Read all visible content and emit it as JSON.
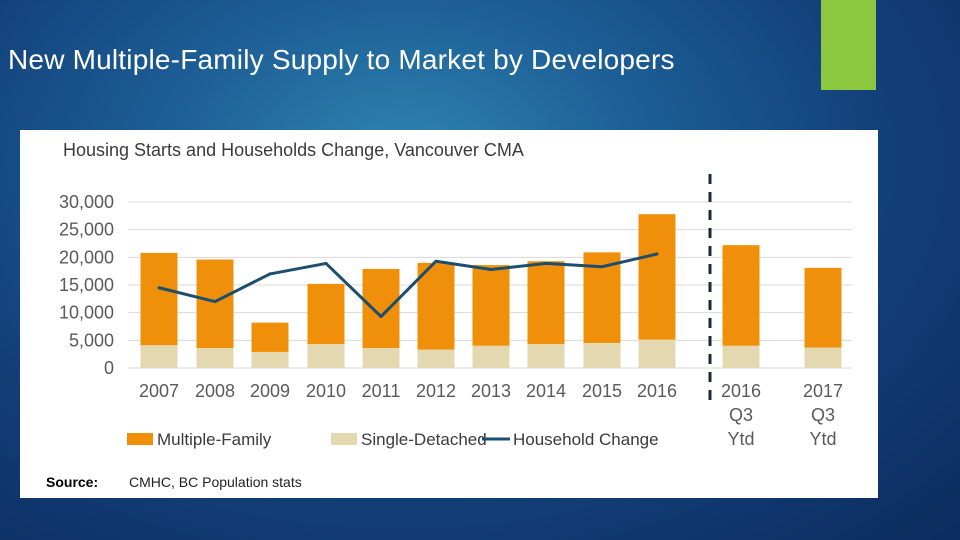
{
  "slide": {
    "title": "New Multiple-Family Supply to Market by Developers"
  },
  "colors": {
    "multiple_family": "#f0900a",
    "single_detached": "#e3d8b0",
    "household_line": "#1d4e6d",
    "accent": "#8dc63f"
  },
  "source": {
    "label": "Source:",
    "text": "CMHC, BC Population stats"
  },
  "chart_data": {
    "type": "bar",
    "title": "Housing Starts and Households Change, Vancouver CMA",
    "stacked": true,
    "categories": [
      "2007",
      "2008",
      "2009",
      "2010",
      "2011",
      "2012",
      "2013",
      "2014",
      "2015",
      "2016",
      "2016 Q3 Ytd",
      "2017 Q3 Ytd"
    ],
    "category_lines": [
      [
        "2007"
      ],
      [
        "2008"
      ],
      [
        "2009"
      ],
      [
        "2010"
      ],
      [
        "2011"
      ],
      [
        "2012"
      ],
      [
        "2013"
      ],
      [
        "2014"
      ],
      [
        "2015"
      ],
      [
        "2016"
      ],
      [
        "2016",
        "Q3",
        "Ytd"
      ],
      [
        "2017",
        "Q3",
        "Ytd"
      ]
    ],
    "series": [
      {
        "name": "Single-Detached",
        "values": [
          4100,
          3600,
          2900,
          4300,
          3600,
          3300,
          4000,
          4300,
          4500,
          5100,
          4000,
          3700
        ]
      },
      {
        "name": "Multiple-Family",
        "values": [
          16700,
          16000,
          5300,
          10900,
          14300,
          15700,
          14600,
          15000,
          16400,
          22700,
          18200,
          14400
        ]
      },
      {
        "name": "Household Change",
        "type": "line",
        "values": [
          14500,
          12000,
          17000,
          18900,
          9300,
          19300,
          17800,
          18900,
          18300,
          20600,
          null,
          null
        ]
      }
    ],
    "yticks": [
      "30,000",
      "25,000",
      "20,000",
      "15,000",
      "10,000",
      "5,000",
      "0"
    ],
    "ylim": [
      0,
      30000
    ],
    "grid": true,
    "divider_after": "2016",
    "legend": {
      "position": "bottom",
      "items": [
        {
          "label": "Multiple-Family",
          "type": "box",
          "color_key": "multiple_family"
        },
        {
          "label": "Single-Detached",
          "type": "box",
          "color_key": "single_detached"
        },
        {
          "label": "Household Change",
          "type": "line",
          "color_key": "household_line"
        }
      ]
    }
  }
}
